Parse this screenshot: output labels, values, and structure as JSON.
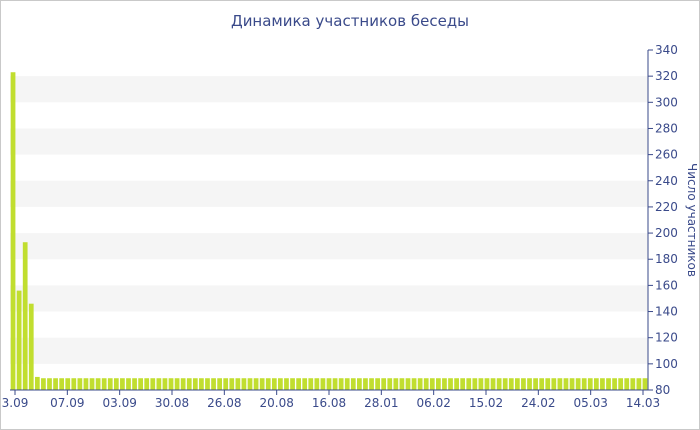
{
  "chart_data": {
    "type": "bar",
    "title": "Динамика участников беседы",
    "ylabel": "Число участников",
    "ylim": [
      80,
      340
    ],
    "yticks": [
      80,
      100,
      120,
      140,
      160,
      180,
      200,
      220,
      240,
      260,
      280,
      300,
      320,
      340
    ],
    "xtick_labels": [
      "3.09",
      "07.09",
      "03.09",
      "30.08",
      "26.08",
      "20.08",
      "16.08",
      "28.01",
      "06.02",
      "15.02",
      "24.02",
      "05.03",
      "14.03"
    ],
    "grid": "alternating horizontal bands",
    "colors": {
      "bar": "#c1de2f",
      "band": "#f5f5f5",
      "text": "#3a4a8a",
      "axis": "#3a4a8a"
    },
    "values": [
      323,
      156,
      193,
      146,
      90,
      89,
      89,
      89,
      89,
      89,
      89,
      89,
      89,
      89,
      89,
      89,
      89,
      89,
      89,
      89,
      89,
      89,
      89,
      89,
      89,
      89,
      89,
      89,
      89,
      89,
      89,
      89,
      89,
      89,
      89,
      89,
      89,
      89,
      89,
      89,
      89,
      89,
      89,
      89,
      89,
      89,
      89,
      89,
      89,
      89,
      89,
      89,
      89,
      89,
      89,
      89,
      89,
      89,
      89,
      89,
      89,
      89,
      89,
      89,
      89,
      89,
      89,
      89,
      89,
      89,
      89,
      89,
      89,
      89,
      89,
      89,
      89,
      89,
      89,
      89,
      89,
      89,
      89,
      89,
      89,
      89,
      89,
      89,
      89,
      89,
      89,
      89,
      89,
      89,
      89,
      89,
      89,
      89,
      89,
      89,
      89,
      89,
      89,
      89,
      89
    ]
  }
}
